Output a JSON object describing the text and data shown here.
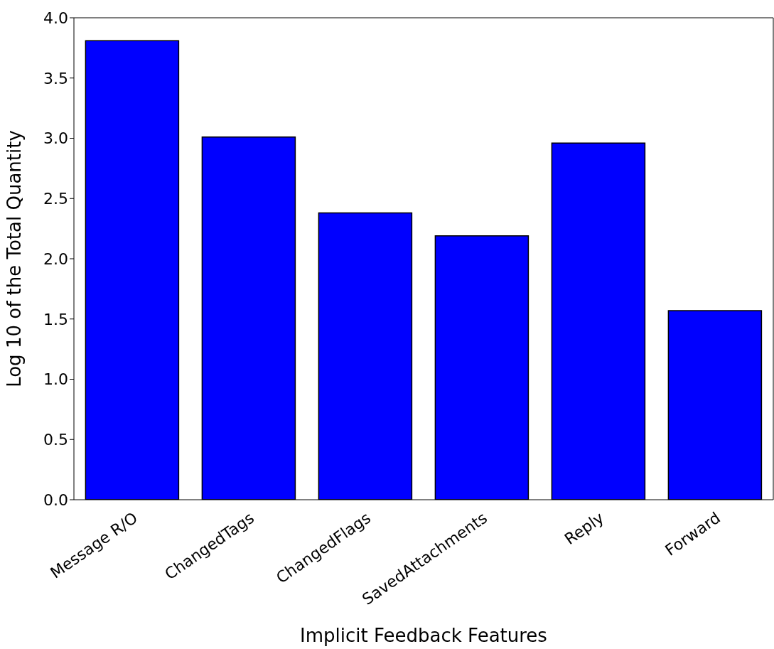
{
  "chart_data": {
    "type": "bar",
    "xlabel": "Implicit Feedback Features",
    "ylabel": "Log 10 of the Total Quantity",
    "categories": [
      "Message R/O",
      "ChangedTags",
      "ChangedFlags",
      "SavedAttachments",
      "Reply",
      "Forward"
    ],
    "values": [
      3.81,
      3.01,
      2.38,
      2.19,
      2.96,
      1.57
    ],
    "color": "#0000ff",
    "ylim": [
      0,
      4
    ],
    "yticks": [
      {
        "value": 0,
        "label": "0.0"
      },
      0.5,
      {
        "value": 1,
        "label": "1.0"
      },
      1.5,
      {
        "value": 2,
        "label": "2.0"
      },
      2.5,
      {
        "value": 3,
        "label": "3.0"
      },
      3.5,
      {
        "value": 4,
        "label": "4.0"
      }
    ],
    "grid": false
  }
}
